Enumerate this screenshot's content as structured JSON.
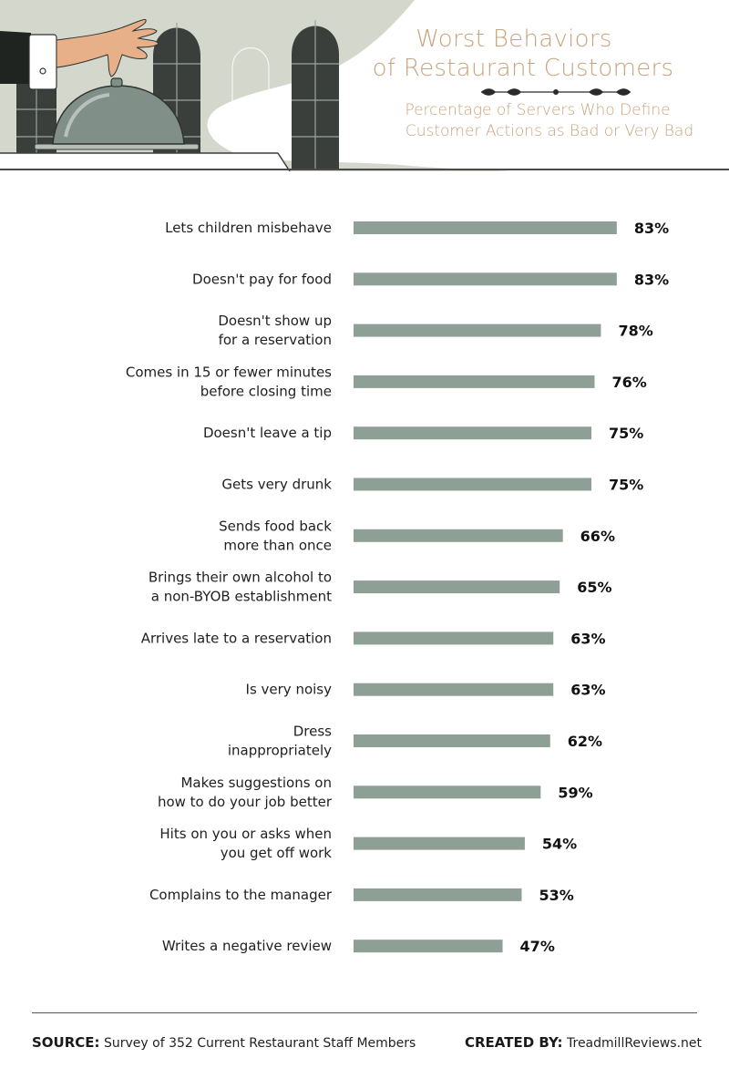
{
  "header": {
    "title_line1": "Worst Behaviors",
    "title_line2": "of Restaurant Customers",
    "subtitle_line1": "Percentage of Servers Who Define",
    "subtitle_line2": "Customer Actions as Bad or Very Bad",
    "colors": {
      "title": "#c8a47e",
      "background_shape": "#d4d7cb",
      "arch": "#3a3f3c",
      "cloche": "#808f88"
    }
  },
  "chart_data": {
    "type": "bar",
    "orientation": "horizontal",
    "categories": [
      [
        "Lets children misbehave"
      ],
      [
        "Doesn't pay for food"
      ],
      [
        "Doesn't show up",
        "for a reservation"
      ],
      [
        "Comes in 15 or fewer minutes",
        "before closing time"
      ],
      [
        "Doesn't leave a tip"
      ],
      [
        "Gets very drunk"
      ],
      [
        "Sends food back",
        "more than once"
      ],
      [
        "Brings their own alcohol to",
        "a non-BYOB establishment"
      ],
      [
        "Arrives late to a reservation"
      ],
      [
        "Is very noisy"
      ],
      [
        "Dress",
        "inappropriately"
      ],
      [
        "Makes suggestions on",
        "how to do your job better"
      ],
      [
        "Hits on you or asks when",
        "you get off work"
      ],
      [
        "Complains to the manager"
      ],
      [
        "Writes a negative review"
      ]
    ],
    "values": [
      83,
      83,
      78,
      76,
      75,
      75,
      66,
      65,
      63,
      63,
      62,
      59,
      54,
      53,
      47
    ],
    "value_labels": [
      "83%",
      "83%",
      "78%",
      "76%",
      "75%",
      "75%",
      "66%",
      "65%",
      "63%",
      "63%",
      "62%",
      "59%",
      "54%",
      "53%",
      "47%"
    ],
    "unit": "%",
    "xlim": [
      0,
      100
    ],
    "grid": false,
    "bar_color": "#8ea096"
  },
  "footer": {
    "source_label": "SOURCE:",
    "source_text": "Survey of 352 Current Restaurant Staff Members",
    "created_label": "CREATED BY:",
    "created_text": "TreadmillReviews.net"
  }
}
